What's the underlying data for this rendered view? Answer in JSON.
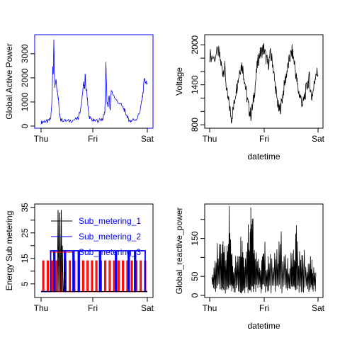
{
  "chart_data": [
    {
      "type": "line",
      "xlabel": "",
      "ylabel": "Global Active Power",
      "x_ticks": [
        "Thu",
        "Fri",
        "Sat"
      ],
      "y_ticks": [
        0,
        1000,
        2000,
        3000
      ],
      "ylim": [
        0,
        3700
      ],
      "line_color": "#0000ff",
      "box_color": "#0000ff",
      "series": [
        {
          "x": [
            0,
            0.03,
            0.06,
            0.09,
            0.1,
            0.11,
            0.115,
            0.12,
            0.125,
            0.13,
            0.14,
            0.15,
            0.155,
            0.16,
            0.165,
            0.17,
            0.18,
            0.2,
            0.25,
            0.3,
            0.35,
            0.38,
            0.4,
            0.41,
            0.415,
            0.42,
            0.43,
            0.44,
            0.45,
            0.47,
            0.5,
            0.55,
            0.58,
            0.6,
            0.61,
            0.62,
            0.63,
            0.64,
            0.65,
            0.66,
            0.7,
            0.75,
            0.78,
            0.8,
            0.82,
            0.84,
            0.86,
            0.9,
            0.93,
            0.95,
            0.96,
            0.97,
            0.98,
            1.0
          ],
          "y": [
            150,
            200,
            180,
            300,
            900,
            2400,
            2100,
            3600,
            2200,
            1600,
            2000,
            1500,
            1400,
            1200,
            1100,
            600,
            300,
            250,
            200,
            250,
            300,
            900,
            1800,
            1500,
            2200,
            1600,
            1400,
            900,
            400,
            300,
            200,
            250,
            300,
            600,
            2600,
            1000,
            800,
            1300,
            600,
            1500,
            1100,
            900,
            700,
            500,
            300,
            200,
            250,
            300,
            600,
            1100,
            1400,
            2000,
            1800,
            1800
          ]
        }
      ]
    },
    {
      "type": "line",
      "xlabel": "datetime",
      "ylabel": "Voltage",
      "x_ticks": [
        "Thu",
        "Fri",
        "Sat"
      ],
      "y_ticks": [
        800,
        1400,
        2000
      ],
      "y_tick_marks": [
        800,
        1000,
        1200,
        1400,
        1600,
        1800,
        2000
      ],
      "ylim": [
        780,
        2120
      ],
      "line_color": "#000000",
      "series": [
        {
          "x": [
            0,
            0.04,
            0.08,
            0.1,
            0.12,
            0.14,
            0.16,
            0.18,
            0.2,
            0.22,
            0.24,
            0.26,
            0.28,
            0.3,
            0.32,
            0.34,
            0.36,
            0.38,
            0.4,
            0.42,
            0.44,
            0.46,
            0.48,
            0.5,
            0.52,
            0.54,
            0.56,
            0.58,
            0.6,
            0.62,
            0.64,
            0.66,
            0.68,
            0.7,
            0.72,
            0.74,
            0.76,
            0.78,
            0.8,
            0.82,
            0.84,
            0.86,
            0.88,
            0.9,
            0.92,
            0.94,
            0.96,
            0.98,
            1.0
          ],
          "y": [
            1850,
            1800,
            1900,
            1750,
            1600,
            1650,
            1250,
            1100,
            900,
            1050,
            1300,
            1450,
            1650,
            1700,
            1500,
            1250,
            1050,
            950,
            1100,
            1400,
            1700,
            1850,
            1900,
            1950,
            1800,
            1700,
            1850,
            1750,
            1450,
            1200,
            1000,
            1100,
            1300,
            1500,
            1650,
            1800,
            1900,
            1750,
            1500,
            1300,
            1200,
            1100,
            1250,
            1400,
            1500,
            1200,
            1350,
            1600,
            1550
          ]
        }
      ]
    },
    {
      "type": "line",
      "xlabel": "",
      "ylabel": "Energy Sub metering",
      "x_ticks": [
        "Thu",
        "Fri",
        "Sat"
      ],
      "y_ticks": [
        5,
        15,
        25,
        35
      ],
      "y_tick_marks": [
        5,
        10,
        15,
        20,
        25,
        30,
        35
      ],
      "ylim": [
        0.5,
        35.5
      ],
      "legend": {
        "placement": "top-right"
      },
      "series": [
        {
          "name": "Sub_metering_1",
          "color": "#000000",
          "baseline": 2,
          "spikes": [
            [
              0.16,
              34
            ],
            [
              0.175,
              33
            ],
            [
              0.19,
              34
            ],
            [
              0.2,
              20
            ],
            [
              0.22,
              15
            ]
          ]
        },
        {
          "name": "Sub_metering_2",
          "color": "#0000ff",
          "baseline": 2,
          "plateau": [
            0.09,
            0.98,
            18
          ],
          "dips": [
            0.12,
            0.22,
            0.3,
            0.35,
            0.55,
            0.7,
            0.82,
            0.88
          ]
        },
        {
          "name": "Sub_metering_3",
          "color": "#ff0000",
          "baseline": 2,
          "spike_height": 14,
          "spike_count": 24
        }
      ]
    },
    {
      "type": "line",
      "xlabel": "datetime",
      "ylabel": "Global_reactive_power",
      "x_ticks": [
        "Thu",
        "Fri",
        "Sat"
      ],
      "y_ticks": [
        0,
        50,
        150
      ],
      "y_tick_marks": [
        0,
        50,
        100,
        150,
        200
      ],
      "ylim": [
        0,
        235
      ],
      "line_color": "#000000",
      "series": [
        {
          "x": [
            0.02,
            0.05,
            0.08,
            0.11,
            0.13,
            0.16,
            0.18,
            0.2,
            0.22,
            0.25,
            0.28,
            0.3,
            0.32,
            0.35,
            0.37,
            0.38,
            0.4,
            0.42,
            0.45,
            0.48,
            0.5,
            0.53,
            0.56,
            0.6,
            0.63,
            0.66,
            0.7,
            0.73,
            0.76,
            0.78,
            0.8,
            0.83,
            0.86,
            0.9,
            0.93,
            0.95,
            0.98
          ],
          "y": [
            80,
            100,
            140,
            120,
            170,
            120,
            230,
            130,
            90,
            110,
            150,
            160,
            110,
            200,
            180,
            230,
            190,
            150,
            100,
            110,
            150,
            90,
            110,
            110,
            130,
            160,
            100,
            90,
            130,
            110,
            170,
            110,
            120,
            90,
            100,
            80,
            60
          ]
        }
      ]
    }
  ]
}
